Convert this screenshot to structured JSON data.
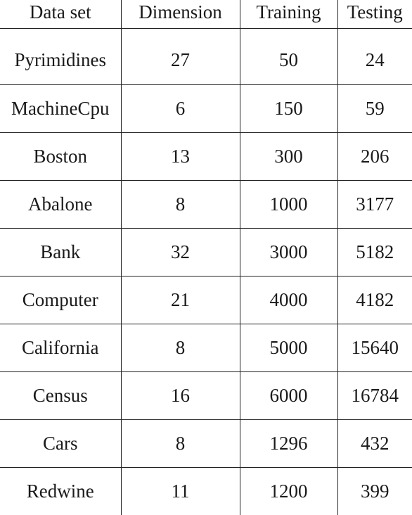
{
  "table": {
    "headers": [
      "Data set",
      "Dimension",
      "Training",
      "Testing"
    ],
    "rows": [
      [
        "Pyrimidines",
        "27",
        "50",
        "24"
      ],
      [
        "MachineCpu",
        "6",
        "150",
        "59"
      ],
      [
        "Boston",
        "13",
        "300",
        "206"
      ],
      [
        "Abalone",
        "8",
        "1000",
        "3177"
      ],
      [
        "Bank",
        "32",
        "3000",
        "5182"
      ],
      [
        "Computer",
        "21",
        "4000",
        "4182"
      ],
      [
        "California",
        "8",
        "5000",
        "15640"
      ],
      [
        "Census",
        "16",
        "6000",
        "16784"
      ],
      [
        "Cars",
        "8",
        "1296",
        "432"
      ],
      [
        "Redwine",
        "11",
        "1200",
        "399"
      ]
    ]
  }
}
